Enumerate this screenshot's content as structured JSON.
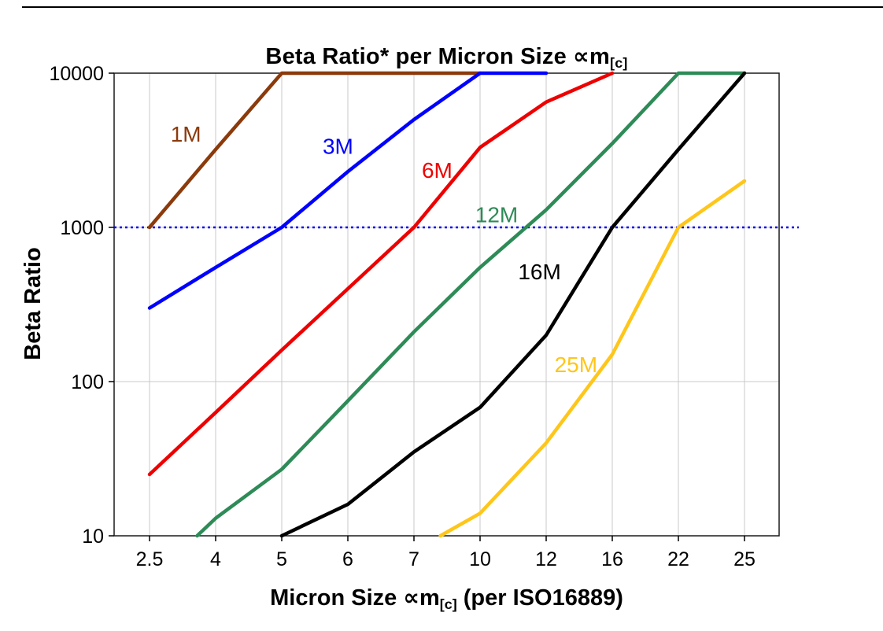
{
  "title": {
    "main": "Beta Ratio* per Micron Size ",
    "symbol": "∝m",
    "sub": "[c]"
  },
  "x_axis": {
    "label_pre": "Micron Size ",
    "label_symbol": "∝m",
    "label_sub": "[c]",
    "label_post": " (per ISO16889)"
  },
  "y_axis": {
    "label": "Beta Ratio"
  },
  "chart_data": {
    "type": "line",
    "title": "Beta Ratio* per Micron Size ∝m[c]",
    "xlabel": "Micron Size ∝m[c] (per ISO16889)",
    "ylabel": "Beta Ratio",
    "x_scale": "categorical",
    "y_scale": "log",
    "grid": true,
    "categories": [
      2.5,
      4,
      5,
      6,
      7,
      10,
      12,
      16,
      22,
      25
    ],
    "y_ticks": [
      10,
      100,
      1000,
      10000
    ],
    "ylim": [
      10,
      10000
    ],
    "reference_line": {
      "y": 1000,
      "color": "#0000ee",
      "style": "dotted"
    },
    "gridline_color": "#c9c9c9",
    "series": [
      {
        "name": "1M",
        "color": "#8B3A0B",
        "values": [
          1000,
          3200,
          10000,
          10000,
          10000,
          10000,
          null,
          null,
          null,
          null
        ],
        "label_pos": {
          "xi": 0.55,
          "y": 3600
        }
      },
      {
        "name": "3M",
        "color": "#0000FF",
        "values": [
          300,
          550,
          1000,
          2300,
          5000,
          10000,
          10000,
          null,
          null,
          null
        ],
        "label_pos": {
          "xi": 2.85,
          "y": 3000
        }
      },
      {
        "name": "6M",
        "color": "#EE0000",
        "values": [
          25,
          63,
          160,
          400,
          1000,
          3300,
          6500,
          10000,
          null,
          null
        ],
        "label_pos": {
          "xi": 4.35,
          "y": 2100
        }
      },
      {
        "name": "12M",
        "color": "#2E8B57",
        "values": [
          null,
          13,
          27,
          75,
          210,
          550,
          1300,
          3500,
          10000,
          10000
        ],
        "start_point": {
          "xi": 0.72,
          "y": 10
        },
        "label_pos": {
          "xi": 5.25,
          "y": 1080
        }
      },
      {
        "name": "16M",
        "color": "#000000",
        "values": [
          null,
          null,
          10,
          16,
          35,
          68,
          200,
          1000,
          3200,
          10000
        ],
        "label_pos": {
          "xi": 5.9,
          "y": 460
        }
      },
      {
        "name": "25M",
        "color": "#FFC61A",
        "values": [
          null,
          null,
          null,
          null,
          null,
          14,
          40,
          150,
          1000,
          2000
        ],
        "start_point": {
          "xi": 4.4,
          "y": 10
        },
        "label_pos": {
          "xi": 6.45,
          "y": 115
        }
      }
    ]
  }
}
